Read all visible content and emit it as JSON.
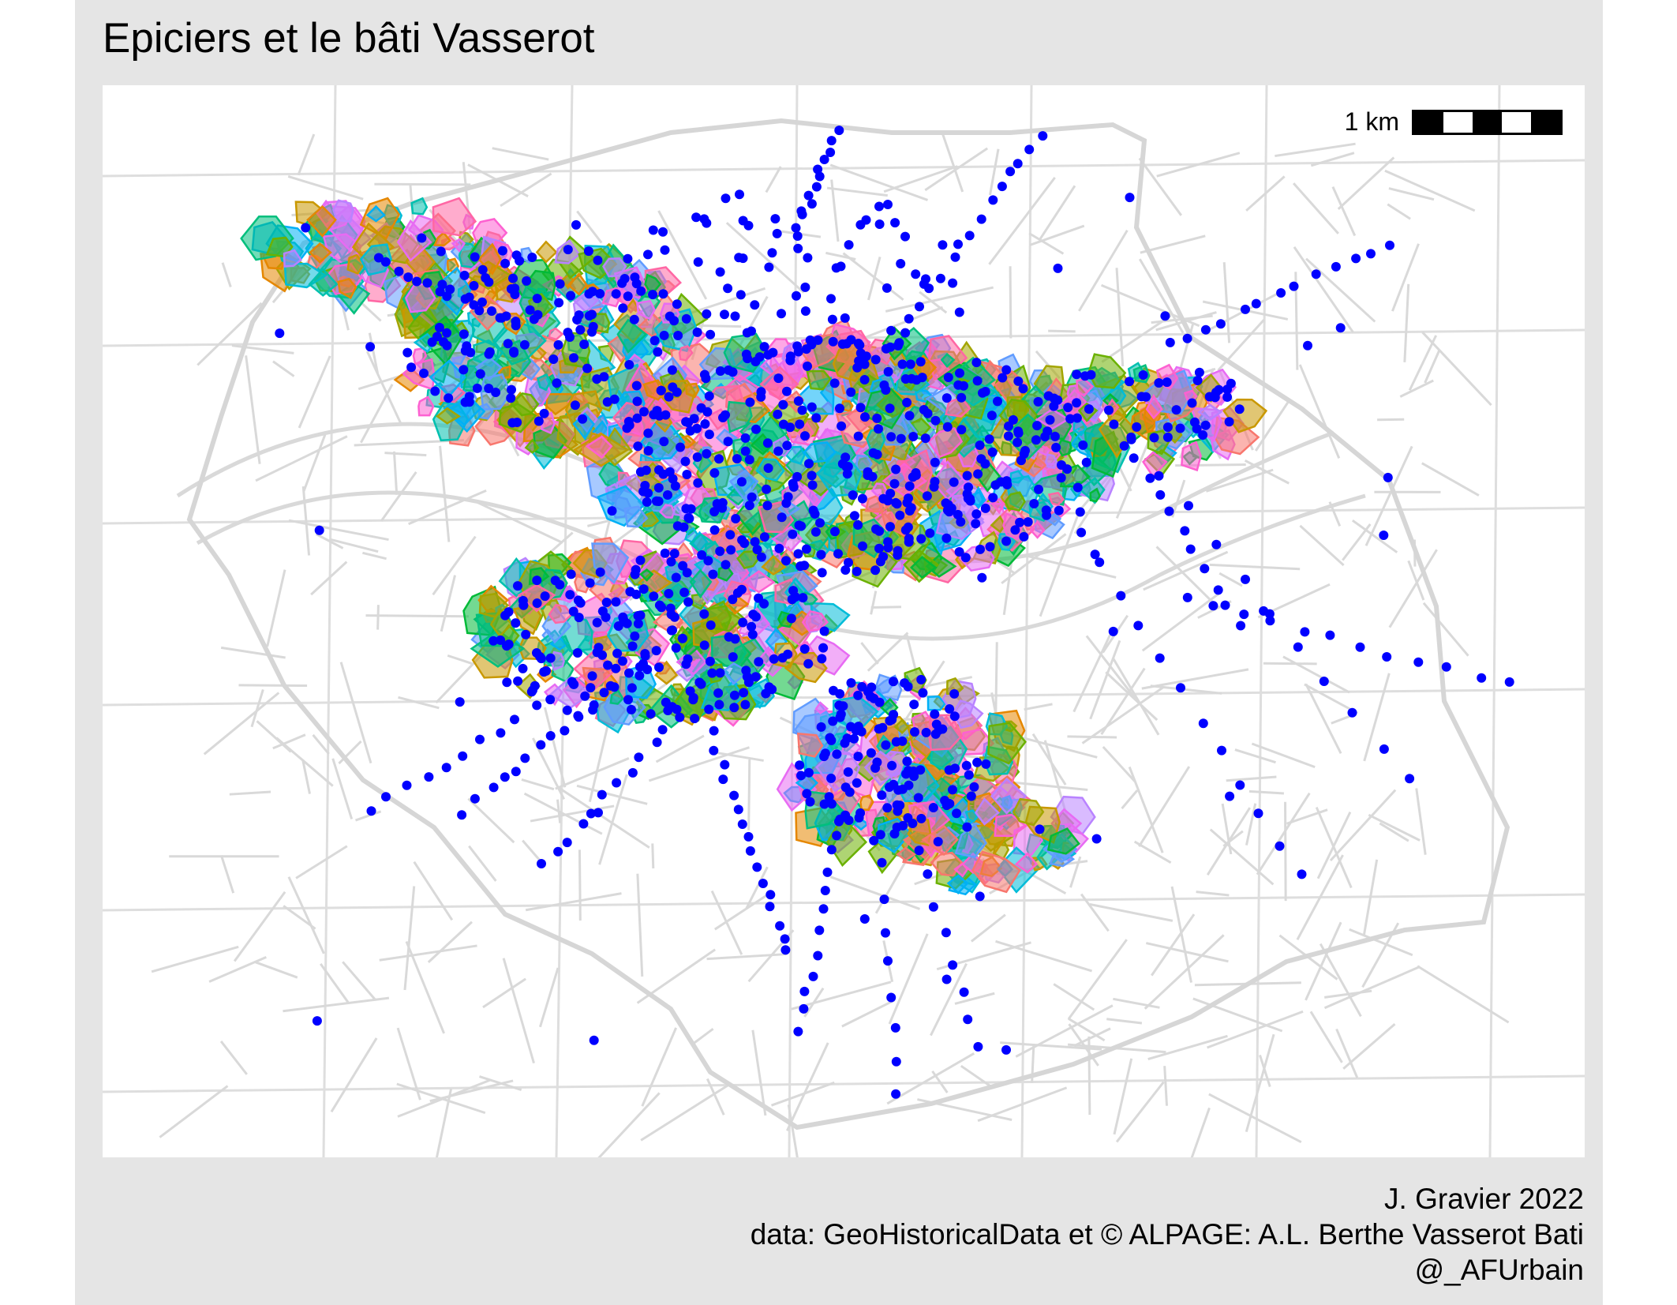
{
  "title": "Epiciers et le bâti Vasserot",
  "scale": {
    "label": "1 km"
  },
  "caption": {
    "author": "J. Gravier 2022",
    "data_credit": "data: GeoHistoricalData et © ALPAGE: A.L. Berthe Vasserot Bati",
    "handle": "@_AFUrbain"
  },
  "colors": {
    "background": "#e5e5e5",
    "panel": "#ffffff",
    "grid": "#dedede",
    "streets": "#d9d9d9",
    "points": "#0000ff",
    "parcel_palette": [
      "#f8766d",
      "#e58700",
      "#c99800",
      "#a3a500",
      "#6bb100",
      "#00ba38",
      "#00bf7d",
      "#00c0af",
      "#00bcd8",
      "#00b0f6",
      "#619cff",
      "#b983ff",
      "#e76bf3",
      "#fd61d1",
      "#ff67a4"
    ]
  }
}
